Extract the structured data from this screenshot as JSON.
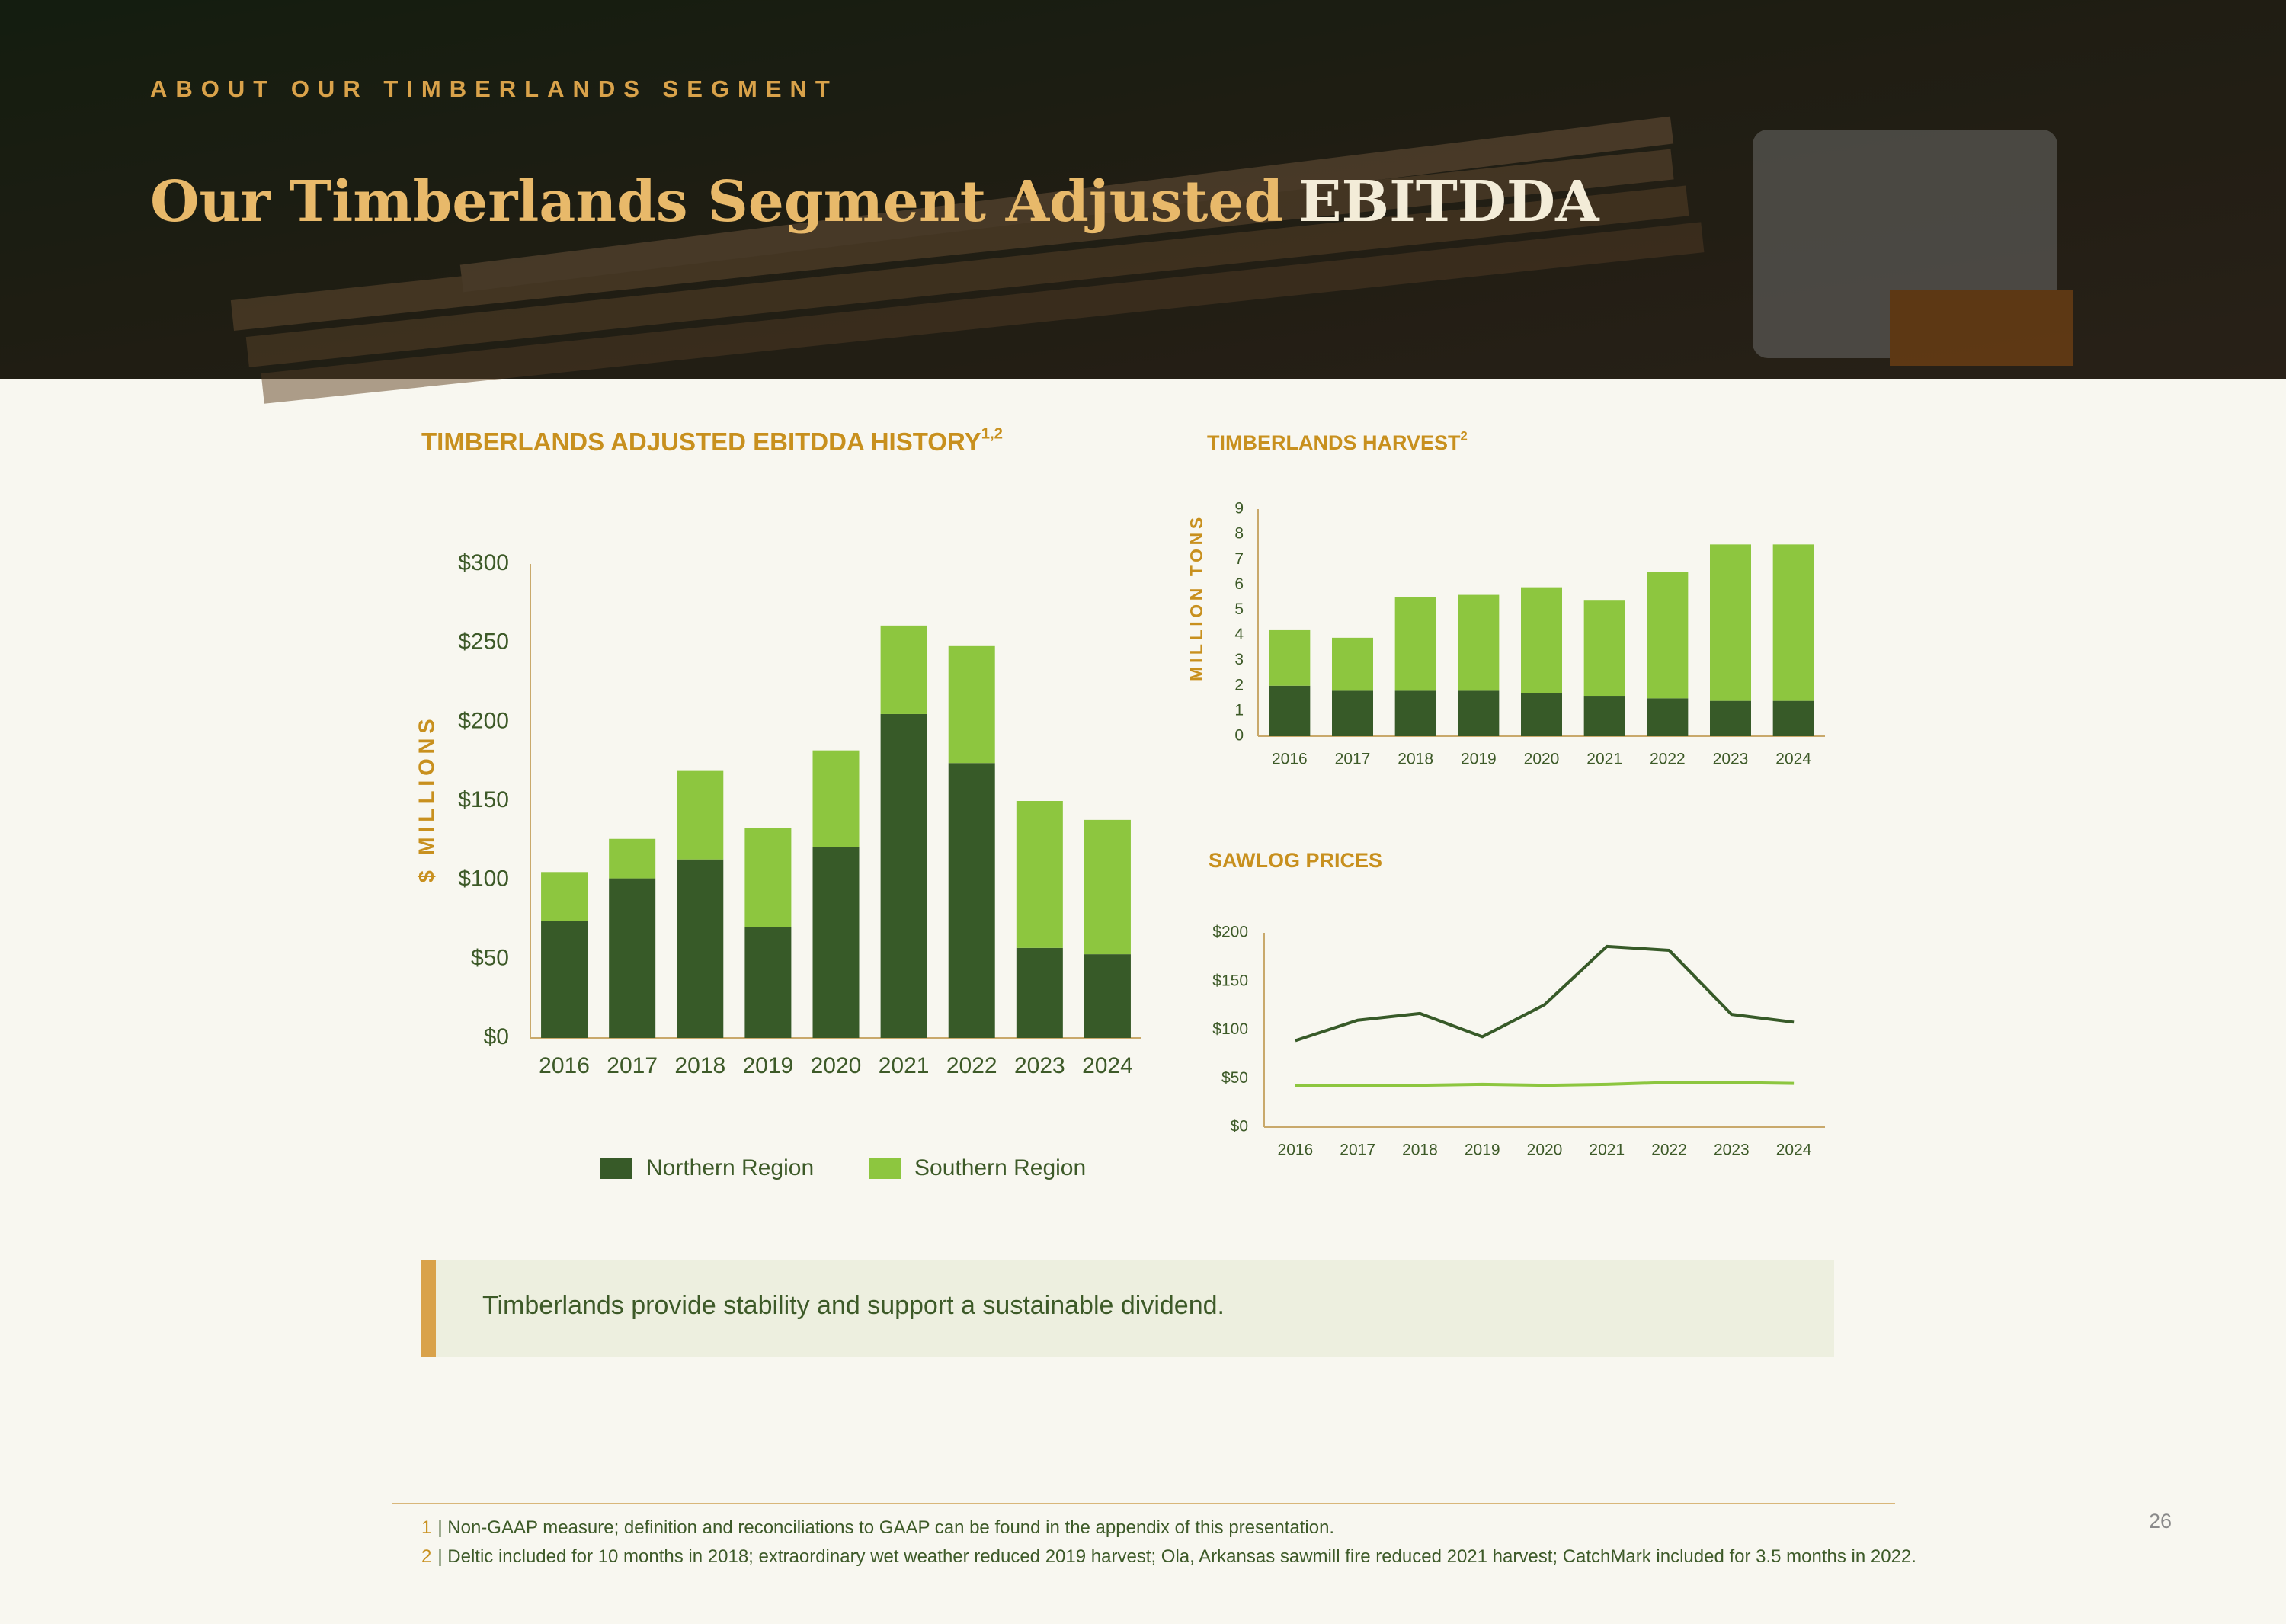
{
  "header": {
    "eyebrow": "ABOUT OUR TIMBERLANDS SEGMENT",
    "title_main": "Our Timberlands Segment Adjusted",
    "title_accent": "EBITDDA"
  },
  "chart_data": [
    {
      "type": "bar",
      "stacked": true,
      "title": "TIMBERLANDS ADJUSTED EBITDDA HISTORY",
      "title_superscript": "1,2",
      "ylabel": "$ MILLIONS",
      "categories": [
        "2016",
        "2017",
        "2018",
        "2019",
        "2020",
        "2021",
        "2022",
        "2023",
        "2024"
      ],
      "series": [
        {
          "name": "Northern Region",
          "color": "#375a28",
          "values": [
            74,
            101,
            113,
            70,
            121,
            205,
            174,
            57,
            53
          ]
        },
        {
          "name": "Southern Region",
          "color": "#8dc63f",
          "values": [
            31,
            25,
            56,
            63,
            61,
            56,
            74,
            93,
            85
          ]
        }
      ],
      "ylim": [
        0,
        300
      ],
      "yticks": [
        {
          "value": 0,
          "label": "$0"
        },
        {
          "value": 50,
          "label": "$50"
        },
        {
          "value": 100,
          "label": "$100"
        },
        {
          "value": 150,
          "label": "$150"
        },
        {
          "value": 200,
          "label": "$200"
        },
        {
          "value": 250,
          "label": "$250"
        },
        {
          "value": 300,
          "label": "$300"
        }
      ],
      "legend": "bottom"
    },
    {
      "type": "bar",
      "stacked": true,
      "title": "TIMBERLANDS HARVEST",
      "title_superscript": "2",
      "ylabel": "MILLION TONS",
      "categories": [
        "2016",
        "2017",
        "2018",
        "2019",
        "2020",
        "2021",
        "2022",
        "2023",
        "2024"
      ],
      "series": [
        {
          "color": "#375a28",
          "values": [
            2.0,
            1.8,
            1.8,
            1.8,
            1.7,
            1.6,
            1.5,
            1.4,
            1.4
          ]
        },
        {
          "color": "#8dc63f",
          "values": [
            2.2,
            2.1,
            3.7,
            3.8,
            4.2,
            3.8,
            5.0,
            6.2,
            6.2
          ]
        }
      ],
      "ylim": [
        0,
        9
      ],
      "yticks": [
        0,
        1,
        2,
        3,
        4,
        5,
        6,
        7,
        8,
        9
      ]
    },
    {
      "type": "line",
      "title": "SAWLOG PRICES",
      "categories": [
        "2016",
        "2017",
        "2018",
        "2019",
        "2020",
        "2021",
        "2022",
        "2023",
        "2024"
      ],
      "series": [
        {
          "color": "#375a28",
          "values": [
            89,
            110,
            117,
            93,
            126,
            186,
            182,
            116,
            108
          ]
        },
        {
          "color": "#8dc63f",
          "values": [
            43,
            43,
            43,
            44,
            43,
            44,
            46,
            46,
            45
          ]
        }
      ],
      "ylim": [
        0,
        200
      ],
      "yticks": [
        {
          "value": 0,
          "label": "$0"
        },
        {
          "value": 50,
          "label": "$50"
        },
        {
          "value": 100,
          "label": "$100"
        },
        {
          "value": 150,
          "label": "$150"
        },
        {
          "value": 200,
          "label": "$200"
        }
      ]
    }
  ],
  "callout": "Timberlands provide stability and support a sustainable dividend.",
  "footnotes": [
    {
      "number": "1",
      "text": "| Non-GAAP measure; definition and reconciliations to GAAP can be found in the appendix of this presentation."
    },
    {
      "number": "2",
      "text": "| Deltic included for 10 months in 2018; extraordinary wet weather reduced 2019 harvest; Ola, Arkansas sawmill fire reduced 2021 harvest; CatchMark included for 3.5 months in 2022."
    }
  ],
  "page_number": "26"
}
